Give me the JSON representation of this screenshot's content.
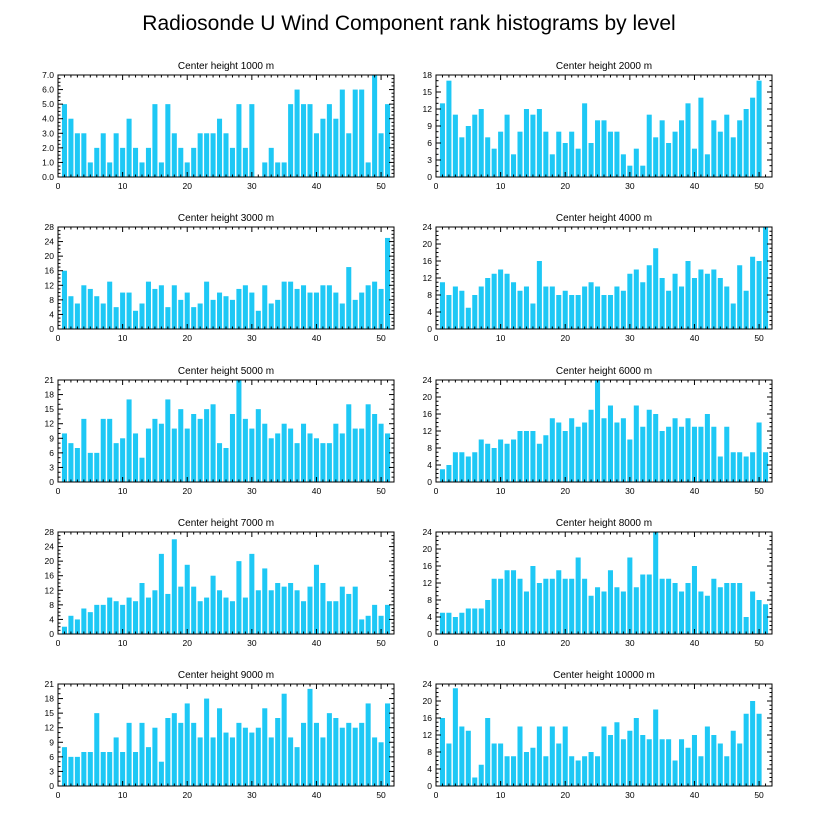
{
  "title": "Radiosonde U Wind Component rank histograms by level",
  "colors": {
    "bar": "#1ec8f5",
    "axis": "#000000",
    "background": "#ffffff"
  },
  "chart_data": [
    {
      "type": "bar",
      "title": "Center height 1000 m",
      "x": [
        0,
        1,
        2,
        3,
        4,
        5,
        6,
        7,
        8,
        9,
        10,
        11,
        12,
        13,
        14,
        15,
        16,
        17,
        18,
        19,
        20,
        21,
        22,
        23,
        24,
        25,
        26,
        27,
        28,
        29,
        30,
        31,
        32,
        33,
        34,
        35,
        36,
        37,
        38,
        39,
        40,
        41,
        42,
        43,
        44,
        45,
        46,
        47,
        48,
        49,
        50,
        51
      ],
      "values": [
        0,
        5,
        4,
        3,
        3,
        1,
        2,
        3,
        1,
        3,
        2,
        4,
        2,
        1,
        2,
        5,
        1,
        5,
        3,
        2,
        1,
        2,
        3,
        3,
        3,
        4,
        3,
        2,
        5,
        2,
        5,
        0,
        1,
        2,
        1,
        1,
        5,
        6,
        5,
        5,
        3,
        4,
        5,
        4,
        6,
        3,
        6,
        6,
        1,
        7,
        3,
        5
      ],
      "xlim": [
        0,
        52
      ],
      "ylim": [
        0,
        7
      ],
      "xticks": [
        0,
        10,
        20,
        30,
        40,
        50
      ],
      "yticks": [
        0,
        1,
        2,
        3,
        4,
        5,
        6,
        7
      ],
      "yticklabels": [
        "0.0",
        "1.0",
        "2.0",
        "3.0",
        "4.0",
        "5.0",
        "6.0",
        "7.0"
      ]
    },
    {
      "type": "bar",
      "title": "Center height 2000 m",
      "x": [
        0,
        1,
        2,
        3,
        4,
        5,
        6,
        7,
        8,
        9,
        10,
        11,
        12,
        13,
        14,
        15,
        16,
        17,
        18,
        19,
        20,
        21,
        22,
        23,
        24,
        25,
        26,
        27,
        28,
        29,
        30,
        31,
        32,
        33,
        34,
        35,
        36,
        37,
        38,
        39,
        40,
        41,
        42,
        43,
        44,
        45,
        46,
        47,
        48,
        49,
        50,
        51
      ],
      "values": [
        0,
        13,
        17,
        11,
        7,
        9,
        11,
        12,
        7,
        5,
        8,
        11,
        4,
        8,
        12,
        11,
        12,
        8,
        4,
        8,
        6,
        8,
        5,
        13,
        6,
        10,
        10,
        8,
        8,
        4,
        2,
        5,
        2,
        11,
        7,
        10,
        6,
        8,
        10,
        13,
        5,
        14,
        4,
        10,
        8,
        11,
        7,
        10,
        12,
        14,
        17,
        0
      ],
      "xlim": [
        0,
        52
      ],
      "ylim": [
        0,
        18
      ],
      "xticks": [
        0,
        10,
        20,
        30,
        40,
        50
      ],
      "yticks": [
        0,
        3,
        6,
        9,
        12,
        15,
        18
      ],
      "yticklabels": [
        "0",
        "3",
        "6",
        "9",
        "12",
        "15",
        "18"
      ]
    },
    {
      "type": "bar",
      "title": "Center height 3000 m",
      "x": [
        0,
        1,
        2,
        3,
        4,
        5,
        6,
        7,
        8,
        9,
        10,
        11,
        12,
        13,
        14,
        15,
        16,
        17,
        18,
        19,
        20,
        21,
        22,
        23,
        24,
        25,
        26,
        27,
        28,
        29,
        30,
        31,
        32,
        33,
        34,
        35,
        36,
        37,
        38,
        39,
        40,
        41,
        42,
        43,
        44,
        45,
        46,
        47,
        48,
        49,
        50,
        51
      ],
      "values": [
        0,
        16,
        9,
        7,
        12,
        11,
        9,
        7,
        13,
        6,
        10,
        10,
        5,
        7,
        13,
        11,
        12,
        6,
        12,
        8,
        10,
        6,
        7,
        13,
        8,
        10,
        9,
        8,
        11,
        12,
        10,
        5,
        12,
        7,
        8,
        13,
        13,
        11,
        12,
        10,
        10,
        12,
        12,
        10,
        7,
        17,
        8,
        10,
        12,
        13,
        11,
        25
      ],
      "xlim": [
        0,
        52
      ],
      "ylim": [
        0,
        28
      ],
      "xticks": [
        0,
        10,
        20,
        30,
        40,
        50
      ],
      "yticks": [
        0,
        4,
        8,
        12,
        16,
        20,
        24,
        28
      ],
      "yticklabels": [
        "0",
        "4",
        "8",
        "12",
        "16",
        "20",
        "24",
        "28"
      ]
    },
    {
      "type": "bar",
      "title": "Center height 4000 m",
      "x": [
        0,
        1,
        2,
        3,
        4,
        5,
        6,
        7,
        8,
        9,
        10,
        11,
        12,
        13,
        14,
        15,
        16,
        17,
        18,
        19,
        20,
        21,
        22,
        23,
        24,
        25,
        26,
        27,
        28,
        29,
        30,
        31,
        32,
        33,
        34,
        35,
        36,
        37,
        38,
        39,
        40,
        41,
        42,
        43,
        44,
        45,
        46,
        47,
        48,
        49,
        50,
        51
      ],
      "values": [
        0,
        11,
        8,
        10,
        9,
        5,
        8,
        10,
        12,
        13,
        14,
        13,
        11,
        9,
        10,
        6,
        16,
        10,
        10,
        8,
        9,
        8,
        8,
        10,
        11,
        10,
        8,
        8,
        10,
        9,
        13,
        14,
        11,
        15,
        19,
        12,
        9,
        13,
        10,
        16,
        12,
        14,
        13,
        14,
        12,
        10,
        6,
        15,
        9,
        17,
        16,
        24
      ],
      "xlim": [
        0,
        52
      ],
      "ylim": [
        0,
        24
      ],
      "xticks": [
        0,
        10,
        20,
        30,
        40,
        50
      ],
      "yticks": [
        0,
        4,
        8,
        12,
        16,
        20,
        24
      ],
      "yticklabels": [
        "0",
        "4",
        "8",
        "12",
        "16",
        "20",
        "24"
      ]
    },
    {
      "type": "bar",
      "title": "Center height 5000 m",
      "x": [
        0,
        1,
        2,
        3,
        4,
        5,
        6,
        7,
        8,
        9,
        10,
        11,
        12,
        13,
        14,
        15,
        16,
        17,
        18,
        19,
        20,
        21,
        22,
        23,
        24,
        25,
        26,
        27,
        28,
        29,
        30,
        31,
        32,
        33,
        34,
        35,
        36,
        37,
        38,
        39,
        40,
        41,
        42,
        43,
        44,
        45,
        46,
        47,
        48,
        49,
        50,
        51
      ],
      "values": [
        0,
        10,
        8,
        7,
        13,
        6,
        6,
        13,
        13,
        8,
        9,
        17,
        10,
        5,
        11,
        13,
        12,
        17,
        11,
        15,
        11,
        14,
        13,
        15,
        16,
        8,
        7,
        14,
        21,
        13,
        11,
        15,
        12,
        9,
        10,
        12,
        11,
        8,
        12,
        10,
        9,
        8,
        8,
        12,
        10,
        16,
        11,
        11,
        16,
        14,
        12,
        10
      ],
      "xlim": [
        0,
        52
      ],
      "ylim": [
        0,
        21
      ],
      "xticks": [
        0,
        10,
        20,
        30,
        40,
        50
      ],
      "yticks": [
        0,
        3,
        6,
        9,
        12,
        15,
        18,
        21
      ],
      "yticklabels": [
        "0",
        "3",
        "6",
        "9",
        "12",
        "15",
        "18",
        "21"
      ]
    },
    {
      "type": "bar",
      "title": "Center height 6000 m",
      "x": [
        0,
        1,
        2,
        3,
        4,
        5,
        6,
        7,
        8,
        9,
        10,
        11,
        12,
        13,
        14,
        15,
        16,
        17,
        18,
        19,
        20,
        21,
        22,
        23,
        24,
        25,
        26,
        27,
        28,
        29,
        30,
        31,
        32,
        33,
        34,
        35,
        36,
        37,
        38,
        39,
        40,
        41,
        42,
        43,
        44,
        45,
        46,
        47,
        48,
        49,
        50,
        51
      ],
      "values": [
        0,
        3,
        4,
        7,
        7,
        6,
        7,
        10,
        9,
        8,
        10,
        9,
        10,
        12,
        12,
        12,
        9,
        11,
        15,
        14,
        12,
        15,
        13,
        14,
        17,
        24,
        15,
        18,
        14,
        15,
        10,
        18,
        13,
        17,
        16,
        12,
        13,
        15,
        13,
        15,
        13,
        13,
        16,
        13,
        6,
        13,
        7,
        7,
        6,
        7,
        14,
        7
      ],
      "xlim": [
        0,
        52
      ],
      "ylim": [
        0,
        24
      ],
      "xticks": [
        0,
        10,
        20,
        30,
        40,
        50
      ],
      "yticks": [
        0,
        4,
        8,
        12,
        16,
        20,
        24
      ],
      "yticklabels": [
        "0",
        "4",
        "8",
        "12",
        "16",
        "20",
        "24"
      ]
    },
    {
      "type": "bar",
      "title": "Center height 7000 m",
      "x": [
        0,
        1,
        2,
        3,
        4,
        5,
        6,
        7,
        8,
        9,
        10,
        11,
        12,
        13,
        14,
        15,
        16,
        17,
        18,
        19,
        20,
        21,
        22,
        23,
        24,
        25,
        26,
        27,
        28,
        29,
        30,
        31,
        32,
        33,
        34,
        35,
        36,
        37,
        38,
        39,
        40,
        41,
        42,
        43,
        44,
        45,
        46,
        47,
        48,
        49,
        50,
        51
      ],
      "values": [
        0,
        2,
        5,
        4,
        7,
        6,
        8,
        8,
        10,
        9,
        8,
        10,
        9,
        14,
        10,
        12,
        22,
        11,
        26,
        13,
        19,
        13,
        9,
        10,
        16,
        12,
        10,
        9,
        20,
        10,
        22,
        12,
        18,
        12,
        14,
        13,
        14,
        12,
        9,
        13,
        19,
        14,
        9,
        9,
        13,
        11,
        13,
        4,
        5,
        8,
        5,
        8
      ],
      "xlim": [
        0,
        52
      ],
      "ylim": [
        0,
        28
      ],
      "xticks": [
        0,
        10,
        20,
        30,
        40,
        50
      ],
      "yticks": [
        0,
        4,
        8,
        12,
        16,
        20,
        24,
        28
      ],
      "yticklabels": [
        "0",
        "4",
        "8",
        "12",
        "16",
        "20",
        "24",
        "28"
      ]
    },
    {
      "type": "bar",
      "title": "Center height 8000 m",
      "x": [
        0,
        1,
        2,
        3,
        4,
        5,
        6,
        7,
        8,
        9,
        10,
        11,
        12,
        13,
        14,
        15,
        16,
        17,
        18,
        19,
        20,
        21,
        22,
        23,
        24,
        25,
        26,
        27,
        28,
        29,
        30,
        31,
        32,
        33,
        34,
        35,
        36,
        37,
        38,
        39,
        40,
        41,
        42,
        43,
        44,
        45,
        46,
        47,
        48,
        49,
        50,
        51
      ],
      "values": [
        0,
        5,
        5,
        4,
        5,
        6,
        6,
        6,
        8,
        13,
        13,
        15,
        15,
        13,
        10,
        16,
        12,
        13,
        13,
        15,
        13,
        13,
        18,
        13,
        9,
        11,
        10,
        15,
        11,
        10,
        18,
        11,
        14,
        14,
        24,
        13,
        13,
        12,
        10,
        12,
        16,
        10,
        9,
        13,
        11,
        12,
        12,
        12,
        4,
        10,
        8,
        7
      ],
      "xlim": [
        0,
        52
      ],
      "ylim": [
        0,
        24
      ],
      "xticks": [
        0,
        10,
        20,
        30,
        40,
        50
      ],
      "yticks": [
        0,
        4,
        8,
        12,
        16,
        20,
        24
      ],
      "yticklabels": [
        "0",
        "4",
        "8",
        "12",
        "16",
        "20",
        "24"
      ]
    },
    {
      "type": "bar",
      "title": "Center height 9000 m",
      "x": [
        0,
        1,
        2,
        3,
        4,
        5,
        6,
        7,
        8,
        9,
        10,
        11,
        12,
        13,
        14,
        15,
        16,
        17,
        18,
        19,
        20,
        21,
        22,
        23,
        24,
        25,
        26,
        27,
        28,
        29,
        30,
        31,
        32,
        33,
        34,
        35,
        36,
        37,
        38,
        39,
        40,
        41,
        42,
        43,
        44,
        45,
        46,
        47,
        48,
        49,
        50,
        51
      ],
      "values": [
        0,
        8,
        6,
        6,
        7,
        7,
        15,
        7,
        7,
        10,
        7,
        13,
        7,
        13,
        8,
        12,
        5,
        14,
        15,
        13,
        17,
        13,
        10,
        18,
        10,
        16,
        11,
        10,
        13,
        12,
        11,
        12,
        16,
        10,
        14,
        19,
        10,
        8,
        13,
        20,
        13,
        10,
        15,
        14,
        12,
        13,
        12,
        13,
        17,
        10,
        9,
        17
      ],
      "xlim": [
        0,
        52
      ],
      "ylim": [
        0,
        21
      ],
      "xticks": [
        0,
        10,
        20,
        30,
        40,
        50
      ],
      "yticks": [
        0,
        3,
        6,
        9,
        12,
        15,
        18,
        21
      ],
      "yticklabels": [
        "0",
        "3",
        "6",
        "9",
        "12",
        "15",
        "18",
        "21"
      ]
    },
    {
      "type": "bar",
      "title": "Center height 10000 m",
      "x": [
        0,
        1,
        2,
        3,
        4,
        5,
        6,
        7,
        8,
        9,
        10,
        11,
        12,
        13,
        14,
        15,
        16,
        17,
        18,
        19,
        20,
        21,
        22,
        23,
        24,
        25,
        26,
        27,
        28,
        29,
        30,
        31,
        32,
        33,
        34,
        35,
        36,
        37,
        38,
        39,
        40,
        41,
        42,
        43,
        44,
        45,
        46,
        47,
        48,
        49,
        50,
        51
      ],
      "values": [
        0,
        16,
        10,
        23,
        14,
        13,
        2,
        5,
        16,
        10,
        10,
        7,
        7,
        14,
        8,
        9,
        14,
        7,
        14,
        10,
        14,
        7,
        6,
        7,
        8,
        7,
        14,
        12,
        15,
        11,
        13,
        16,
        12,
        11,
        18,
        11,
        11,
        6,
        11,
        9,
        12,
        7,
        14,
        12,
        10,
        7,
        13,
        10,
        17,
        20,
        17,
        0
      ],
      "xlim": [
        0,
        52
      ],
      "ylim": [
        0,
        24
      ],
      "xticks": [
        0,
        10,
        20,
        30,
        40,
        50
      ],
      "yticks": [
        0,
        4,
        8,
        12,
        16,
        20,
        24
      ],
      "yticklabels": [
        "0",
        "4",
        "8",
        "12",
        "16",
        "20",
        "24"
      ]
    }
  ]
}
